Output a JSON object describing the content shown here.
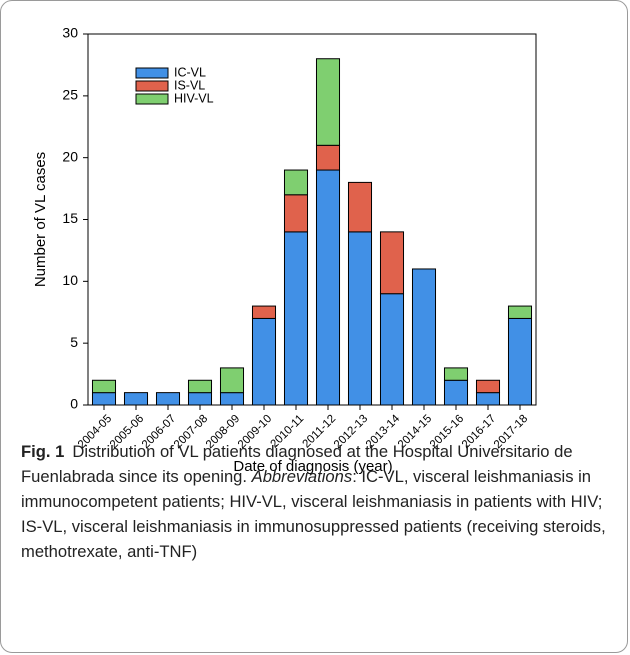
{
  "chart_data": {
    "type": "bar",
    "stacked": true,
    "x_label": "Date of diagnosis (year)",
    "y_label": "Number of VL cases",
    "categories": [
      "2004-05",
      "2005-06",
      "2006-07",
      "2007-08",
      "2008-09",
      "2009-10",
      "2010-11",
      "2011-12",
      "2012-13",
      "2013-14",
      "2014-15",
      "2015-16",
      "2016-17",
      "2017-18"
    ],
    "series": [
      {
        "name": "IC-VL",
        "color": "#4190e6",
        "values": [
          1,
          1,
          1,
          1,
          1,
          7,
          14,
          19,
          14,
          9,
          11,
          2,
          1,
          7
        ]
      },
      {
        "name": "IS-VL",
        "color": "#e0624c",
        "values": [
          0,
          0,
          0,
          0,
          0,
          1,
          3,
          2,
          4,
          5,
          0,
          0,
          1,
          0
        ]
      },
      {
        "name": "HIV-VL",
        "color": "#7fcf70",
        "values": [
          1,
          0,
          0,
          1,
          2,
          0,
          2,
          7,
          0,
          0,
          0,
          1,
          0,
          1
        ]
      }
    ],
    "ylim": [
      0,
      30
    ],
    "yticks": [
      0,
      5,
      10,
      15,
      20,
      25,
      30
    ],
    "grid": false,
    "legend": "upper left"
  },
  "caption": {
    "label": "Fig. 1",
    "text_before": "Distribution of VL patients diagnosed at the Hospital Universitario de Fuenlabrada since its opening.",
    "italic": "Abbreviations",
    "text_after": ": IC-VL, visceral leishmaniasis in immunocompetent patients; HIV-VL, visceral leishmaniasis in patients with HIV; IS-VL, visceral leishmaniasis in immunosuppressed patients (receiving steroids, methotrexate, anti-TNF)"
  }
}
